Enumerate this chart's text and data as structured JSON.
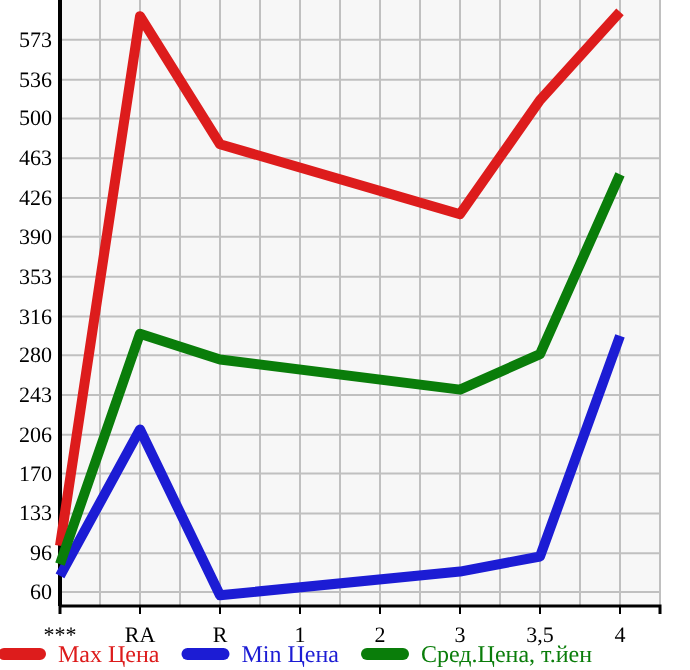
{
  "chart_data": {
    "type": "line",
    "categories": [
      "***",
      "RA",
      "R",
      "1",
      "2",
      "3",
      "3,5",
      "4"
    ],
    "series": [
      {
        "name": "Max Цена",
        "color": "#dd1c1c",
        "values": [
          103,
          595,
          476,
          null,
          null,
          411,
          517,
          599
        ]
      },
      {
        "name": "Min Цена",
        "color": "#1c1cd4",
        "values": [
          75,
          211,
          57,
          null,
          null,
          79,
          93,
          298
        ]
      },
      {
        "name": "Сред.Цена, т.йен",
        "color": "#0a7d0a",
        "values": [
          86,
          300,
          276,
          null,
          null,
          248,
          281,
          448
        ]
      }
    ],
    "ylim": [
      47,
      610
    ],
    "yticks": [
      60,
      96,
      133,
      170,
      206,
      243,
      280,
      316,
      353,
      390,
      426,
      463,
      500,
      536,
      573
    ],
    "grid": true,
    "legend": "bottom",
    "marker": "none",
    "line_style": "solid"
  }
}
